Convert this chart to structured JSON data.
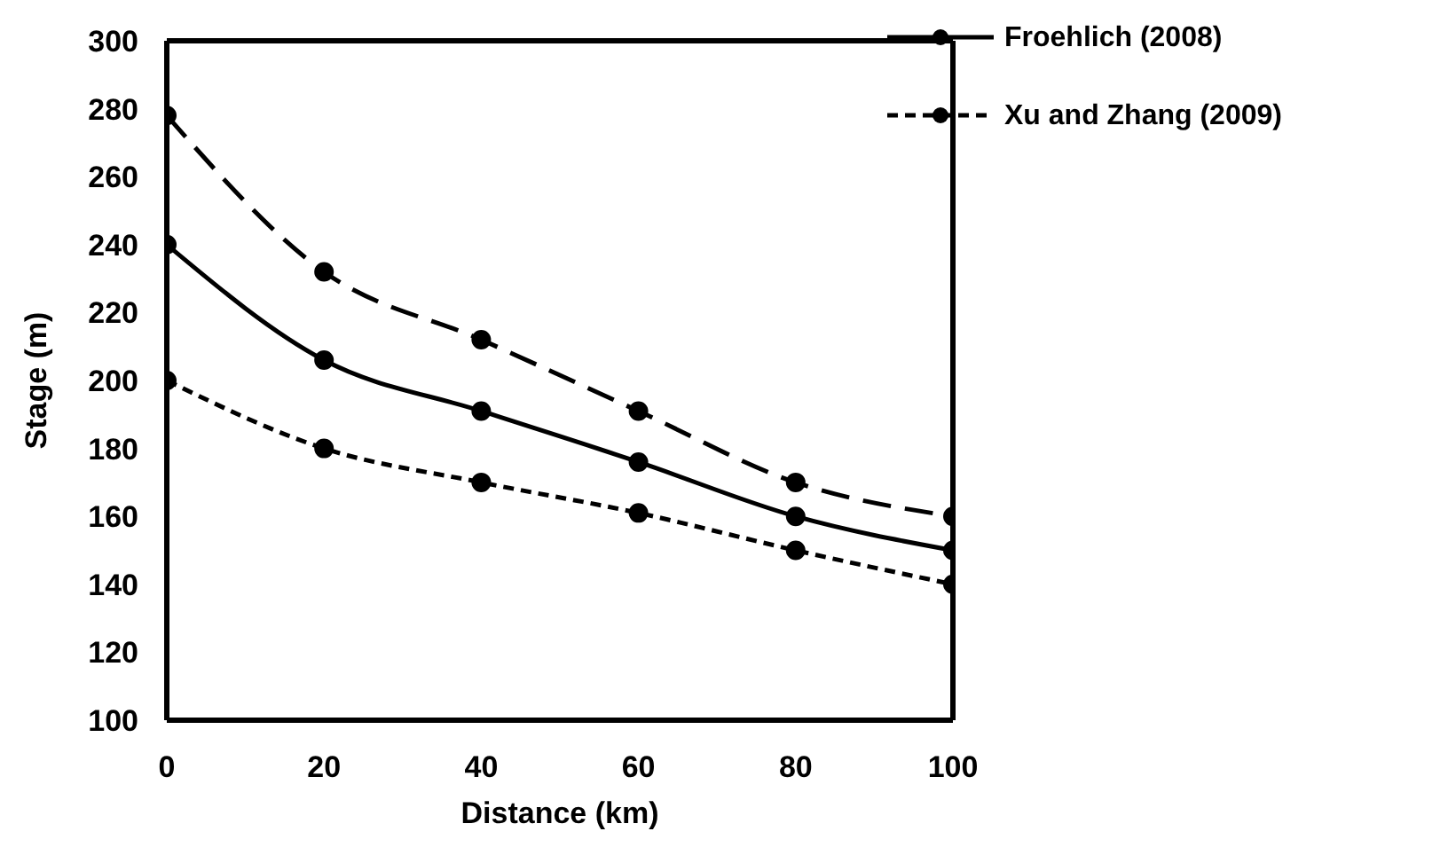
{
  "chart_data": {
    "type": "line",
    "xlabel": "Distance (km)",
    "ylabel": "Stage (m)",
    "x": [
      0,
      20,
      40,
      60,
      80,
      100
    ],
    "series": [
      {
        "name": "Froehlich (2008)",
        "color": "#000000",
        "line_style": "solid",
        "values": [
          240,
          206,
          191,
          176,
          160,
          150
        ]
      },
      {
        "name": "Xu and Zhang (2009)",
        "color": "#000000",
        "line_style": "dotted",
        "values": [
          200,
          180,
          170,
          161,
          150,
          140
        ]
      },
      {
        "color": "#000000",
        "line_style": "dashed",
        "values": [
          278,
          232,
          212,
          191,
          170,
          160
        ]
      }
    ],
    "xlim": [
      0,
      100
    ],
    "xticks": [
      0,
      20,
      40,
      60,
      80,
      100
    ],
    "ylim": [
      100,
      300
    ],
    "yticks": [
      100,
      120,
      140,
      160,
      180,
      200,
      220,
      240,
      260,
      280,
      300
    ],
    "marker": "circle",
    "grid": false,
    "legend": "top right"
  }
}
